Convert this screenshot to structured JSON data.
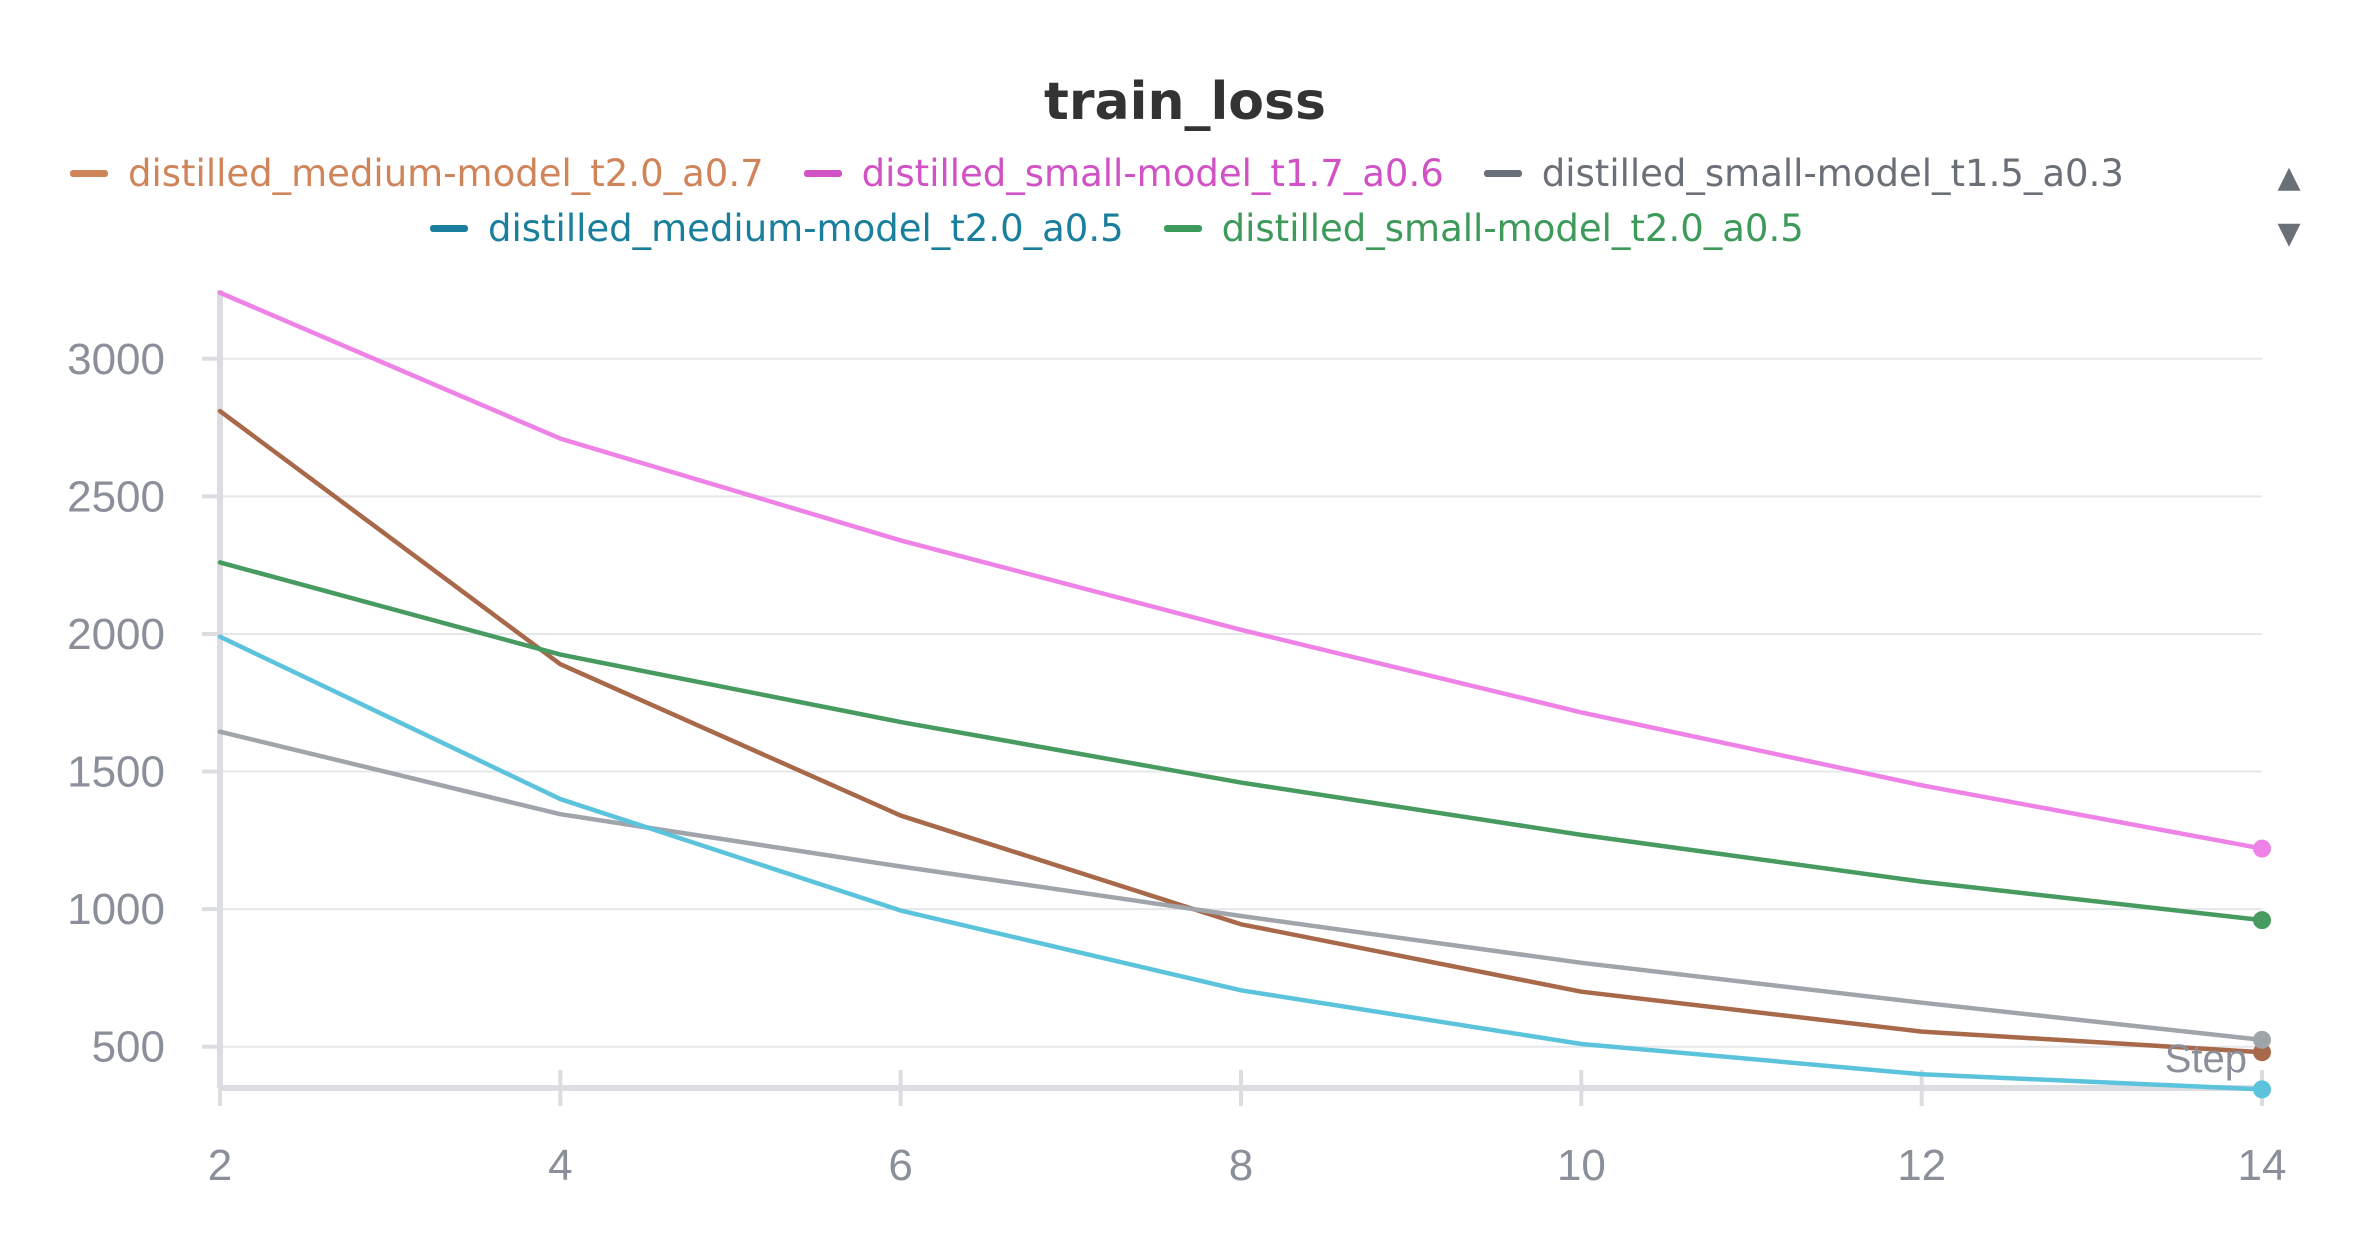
{
  "chart_data": {
    "type": "line",
    "title": "train_loss",
    "xlabel": "Step",
    "ylabel": "",
    "x": [
      2,
      4,
      6,
      8,
      10,
      12,
      14
    ],
    "xlim": [
      2,
      14
    ],
    "ylim": [
      350,
      3250
    ],
    "x_ticks": [
      2,
      4,
      6,
      8,
      10,
      12,
      14
    ],
    "y_ticks": [
      500,
      1000,
      1500,
      2000,
      2500,
      3000
    ],
    "grid": true,
    "legend_placement": "top",
    "series": [
      {
        "name": "distilled_medium-model_t2.0_a0.7",
        "legend_color": "#d0845a",
        "line_color": "#a8684a",
        "values": [
          2810,
          1890,
          1340,
          945,
          700,
          555,
          480
        ]
      },
      {
        "name": "distilled_small-model_t1.7_a0.6",
        "legend_color": "#d152c4",
        "line_color": "#ee82e6",
        "values": [
          3240,
          2710,
          2340,
          2015,
          1715,
          1450,
          1220
        ]
      },
      {
        "name": "distilled_small-model_t1.5_a0.3",
        "legend_color": "#6b6f78",
        "line_color": "#a0a4ab",
        "values": [
          1645,
          1345,
          1155,
          975,
          805,
          660,
          525
        ]
      },
      {
        "name": "distilled_medium-model_t2.0_a0.5",
        "legend_color": "#1a7f9c",
        "line_color": "#5cc3dc",
        "values": [
          1990,
          1400,
          995,
          705,
          510,
          400,
          345
        ]
      },
      {
        "name": "distilled_small-model_t2.0_a0.5",
        "legend_color": "#3d9a5a",
        "line_color": "#479a60",
        "values": [
          2260,
          1925,
          1680,
          1460,
          1270,
          1100,
          960
        ]
      }
    ]
  },
  "legend": {
    "row1": [
      0,
      1,
      2
    ],
    "row2": [
      3,
      4
    ],
    "up_arrow": "▲",
    "down_arrow": "▼"
  }
}
